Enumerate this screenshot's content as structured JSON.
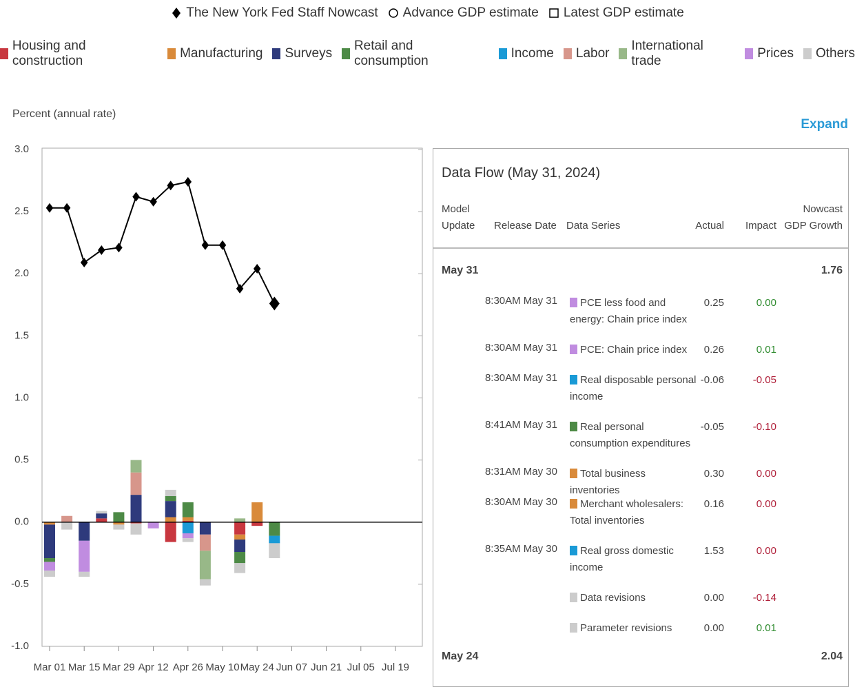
{
  "chart_data": {
    "type": "bar",
    "y_label": "Percent (annual rate)",
    "categories": [
      "Mar 01",
      null,
      "Mar 15",
      null,
      "Mar 29",
      null,
      "Apr 12",
      null,
      "Apr 26",
      null,
      "May 10",
      null,
      "May 24",
      null,
      "Jun 07",
      null,
      "Jun 21",
      null,
      "Jul 05",
      null,
      "Jul 19"
    ],
    "ylim": [
      -1,
      3
    ],
    "yticks": [
      {
        "value": -1,
        "label": "-1.0"
      },
      -0.5,
      {
        "value": 0,
        "label": "0.0"
      },
      0.5,
      {
        "value": 1,
        "label": "1.0"
      },
      1.5,
      {
        "value": 2,
        "label": "2.0"
      },
      2.5,
      {
        "value": 3,
        "label": "3.0"
      }
    ],
    "zero_line": true,
    "stacked": true,
    "series": [
      {
        "name": "Housing and construction",
        "color": "#c8373f",
        "values": [
          null,
          null,
          null,
          0.03,
          null,
          -0.01,
          null,
          -0.16,
          0.01,
          null,
          null,
          -0.1,
          -0.03,
          null,
          null,
          null,
          null,
          null,
          null,
          null,
          null
        ]
      },
      {
        "name": "Manufacturing",
        "color": "#d98a3a",
        "values": [
          -0.02,
          null,
          null,
          null,
          -0.02,
          null,
          null,
          0.04,
          0.03,
          null,
          null,
          -0.04,
          0.16,
          null,
          null,
          null,
          null,
          null,
          null,
          null,
          null
        ]
      },
      {
        "name": "Surveys",
        "color": "#2e3a7c",
        "values": [
          -0.27,
          null,
          -0.15,
          0.04,
          null,
          0.22,
          null,
          0.13,
          null,
          -0.1,
          null,
          -0.1,
          null,
          null,
          null,
          null,
          null,
          null,
          null,
          null,
          null
        ]
      },
      {
        "name": "Retail and consumption",
        "color": "#4d8a46",
        "values": [
          -0.03,
          null,
          null,
          null,
          0.08,
          null,
          null,
          0.04,
          0.12,
          null,
          null,
          -0.09,
          null,
          -0.11,
          null,
          null,
          null,
          null,
          null,
          null,
          null
        ]
      },
      {
        "name": "Income",
        "color": "#1a9ad6",
        "values": [
          null,
          null,
          null,
          null,
          null,
          null,
          null,
          null,
          -0.09,
          null,
          null,
          null,
          null,
          -0.06,
          null,
          null,
          null,
          null,
          null,
          null,
          null
        ]
      },
      {
        "name": "Labor",
        "color": "#d7968b",
        "values": [
          null,
          0.05,
          null,
          null,
          null,
          0.18,
          null,
          null,
          null,
          -0.13,
          null,
          null,
          null,
          null,
          null,
          null,
          null,
          null,
          null,
          null,
          null
        ]
      },
      {
        "name": "International trade",
        "color": "#98b888",
        "values": [
          null,
          null,
          null,
          null,
          null,
          0.1,
          null,
          null,
          null,
          -0.23,
          null,
          0.03,
          null,
          null,
          null,
          null,
          null,
          null,
          null,
          null,
          null
        ]
      },
      {
        "name": "Prices",
        "color": "#c08ce0",
        "values": [
          -0.07,
          null,
          -0.25,
          null,
          null,
          null,
          -0.05,
          null,
          -0.04,
          null,
          null,
          null,
          null,
          null,
          null,
          null,
          null,
          null,
          null,
          null,
          null
        ]
      },
      {
        "name": "Others",
        "color": "#cccccc",
        "values": [
          -0.05,
          -0.06,
          -0.04,
          0.02,
          -0.04,
          -0.09,
          null,
          0.05,
          -0.03,
          -0.05,
          null,
          -0.08,
          null,
          -0.12,
          null,
          null,
          null,
          null,
          null,
          null,
          null
        ]
      }
    ],
    "line_series": [
      {
        "name": "The New York Fed Staff Nowcast",
        "marker": "diamond",
        "color": "#000000",
        "values": [
          2.53,
          2.53,
          2.09,
          2.19,
          2.21,
          2.62,
          2.58,
          2.71,
          2.74,
          2.23,
          2.23,
          1.88,
          2.04,
          1.76,
          null,
          null,
          null,
          null,
          null,
          null,
          null
        ]
      },
      {
        "name": "Advance GDP estimate",
        "marker": "circle",
        "color": "#000000",
        "values": [
          null,
          null,
          null,
          null,
          null,
          null,
          null,
          null,
          null,
          null,
          null,
          null,
          null,
          null,
          null,
          null,
          null,
          null,
          null,
          null,
          null
        ]
      },
      {
        "name": "Latest GDP estimate",
        "marker": "square",
        "color": "#000000",
        "values": [
          null,
          null,
          null,
          null,
          null,
          null,
          null,
          null,
          null,
          null,
          null,
          null,
          null,
          null,
          null,
          null,
          null,
          null,
          null,
          null,
          null
        ]
      }
    ]
  },
  "expand": "Expand",
  "data_flow": {
    "title": "Data Flow (May 31, 2024)",
    "columns": [
      "Model Update",
      "Release Date",
      "Data Series",
      "Actual",
      "Impact",
      "Nowcast GDP Growth"
    ],
    "groups": [
      {
        "update": "May 31",
        "nowcast": "1.76",
        "rows": [
          {
            "release": "8:30AM May 31",
            "series": "PCE less food and energy: Chain price index",
            "color": "#c08ce0",
            "actual": "0.25",
            "impact": "0.00",
            "impact_color": "#2e8b2e"
          },
          {
            "release": "8:30AM May 31",
            "series": "PCE: Chain price index",
            "color": "#c08ce0",
            "actual": "0.26",
            "impact": "0.01",
            "impact_color": "#2e8b2e"
          },
          {
            "release": "8:30AM May 31",
            "series": "Real disposable personal income",
            "color": "#1a9ad6",
            "actual": "-0.06",
            "impact": "-0.05",
            "impact_color": "#b0203a"
          },
          {
            "release": "8:41AM May 31",
            "series": "Real personal consumption expenditures",
            "color": "#4d8a46",
            "actual": "-0.05",
            "impact": "-0.10",
            "impact_color": "#b0203a"
          },
          {
            "release": "8:31AM May 30",
            "series": "Total business inventories",
            "color": "#d98a3a",
            "actual": "0.30",
            "impact": "0.00",
            "impact_color": "#b0203a"
          },
          {
            "release": "8:30AM May 30",
            "series": "Merchant wholesalers: Total inventories",
            "color": "#d98a3a",
            "actual": "0.16",
            "impact": "0.00",
            "impact_color": "#b0203a"
          },
          {
            "release": "8:35AM May 30",
            "series": "Real gross domestic income",
            "color": "#1a9ad6",
            "actual": "1.53",
            "impact": "0.00",
            "impact_color": "#b0203a"
          },
          {
            "release": null,
            "series": "Data revisions",
            "color": "#cccccc",
            "actual": "0.00",
            "impact": "-0.14",
            "impact_color": "#b0203a"
          },
          {
            "release": null,
            "series": "Parameter revisions",
            "color": "#cccccc",
            "actual": "0.00",
            "impact": "0.01",
            "impact_color": "#2e8b2e"
          }
        ]
      },
      {
        "update": "May 24",
        "nowcast": "2.04",
        "rows": []
      }
    ]
  }
}
